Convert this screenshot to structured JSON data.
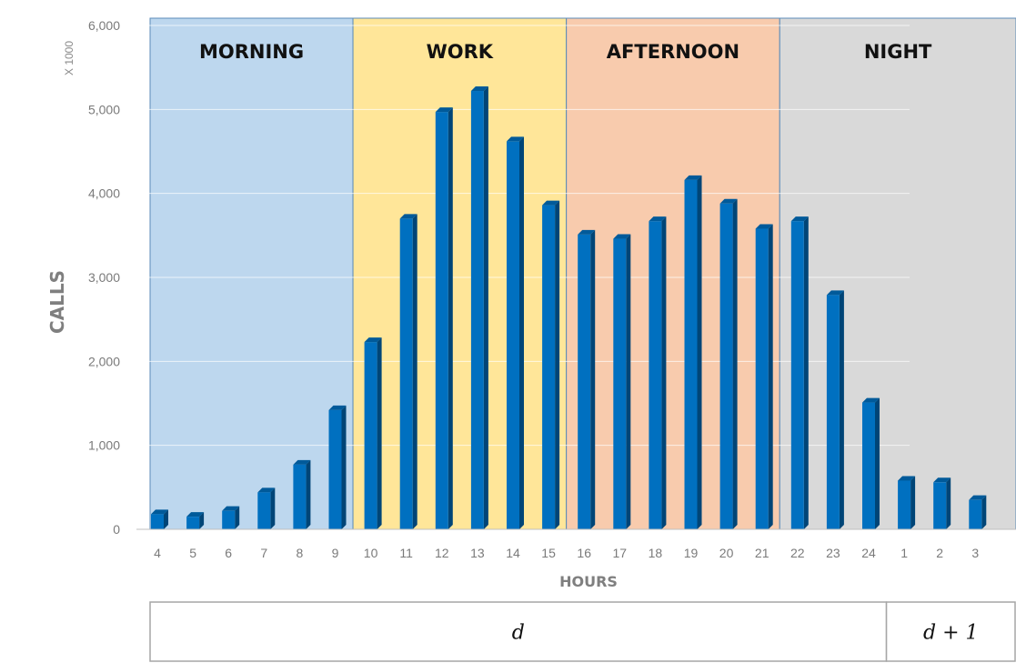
{
  "chart_data": {
    "type": "bar",
    "title": "",
    "xlabel": "HOURS",
    "ylabel": "CALLS",
    "y_unit_label": "X 1000",
    "ylim": [
      0,
      6000
    ],
    "yticks": [
      0,
      1000,
      2000,
      3000,
      4000,
      5000,
      6000
    ],
    "ytick_labels": [
      "0",
      "1,000",
      "2,000",
      "3,000",
      "4,000",
      "5,000",
      "6,000"
    ],
    "grid": true,
    "legend": "none",
    "bar_color": "#0070c0",
    "categories": [
      "4",
      "5",
      "6",
      "7",
      "8",
      "9",
      "10",
      "11",
      "12",
      "13",
      "14",
      "15",
      "16",
      "17",
      "18",
      "19",
      "20",
      "21",
      "22",
      "23",
      "24",
      "1",
      "2",
      "3"
    ],
    "values": [
      180,
      150,
      220,
      440,
      770,
      1420,
      2230,
      3700,
      4970,
      5220,
      4620,
      3860,
      3510,
      3460,
      3670,
      4160,
      3880,
      3580,
      3670,
      2790,
      1510,
      580,
      560,
      350
    ],
    "bands": [
      {
        "label": "MORNING",
        "from": "4",
        "to": "9",
        "color": "#bdd7ee"
      },
      {
        "label": "WORK",
        "from": "10",
        "to": "15",
        "color": "#ffe699"
      },
      {
        "label": "AFTERNOON",
        "from": "16",
        "to": "21",
        "color": "#f8cbad"
      },
      {
        "label": "NIGHT",
        "from": "22",
        "to": "3",
        "color": "#d9d9d9"
      }
    ],
    "days": [
      {
        "label": "d",
        "from": "4",
        "to": "24"
      },
      {
        "label": "d + 1",
        "from": "1",
        "to": "3"
      }
    ]
  }
}
